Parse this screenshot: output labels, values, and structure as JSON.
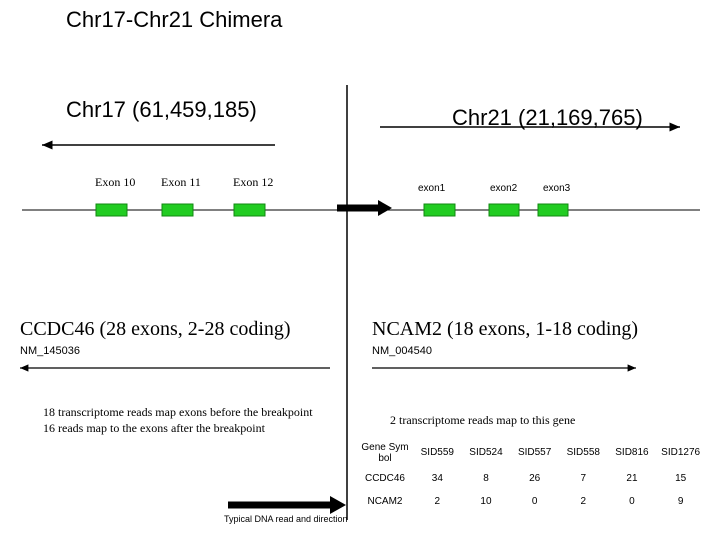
{
  "title": "Chr17-Chr21 Chimera",
  "chr17": {
    "label": "Chr17 (61,459,185)",
    "exons": [
      "Exon 10",
      "Exon 11",
      "Exon 12"
    ],
    "gene": "CCDC46 (28 exons, 2-28 coding)",
    "accession": "NM_145036",
    "reads": [
      "18 transcriptome reads map exons before the breakpoint",
      "16 reads map to the exons after the breakpoint"
    ]
  },
  "chr21": {
    "label": "Chr21 (21,169,765)",
    "exons": [
      "exon1",
      "exon2",
      "exon3"
    ],
    "gene": "NCAM2  (18 exons, 1-18 coding)",
    "accession": "NM_004540",
    "reads": "2 transcriptome reads map to this gene"
  },
  "table": {
    "header": [
      "Gene Symbol",
      "SID559",
      "SID524",
      "SID557",
      "SID558",
      "SID816",
      "SID1276"
    ],
    "rows": [
      [
        "CCDC46",
        "34",
        "8",
        "26",
        "7",
        "21",
        "15"
      ],
      [
        "NCAM2",
        "2",
        "10",
        "0",
        "2",
        "0",
        "9"
      ]
    ]
  },
  "legend": "Typical DNA read and direction"
}
